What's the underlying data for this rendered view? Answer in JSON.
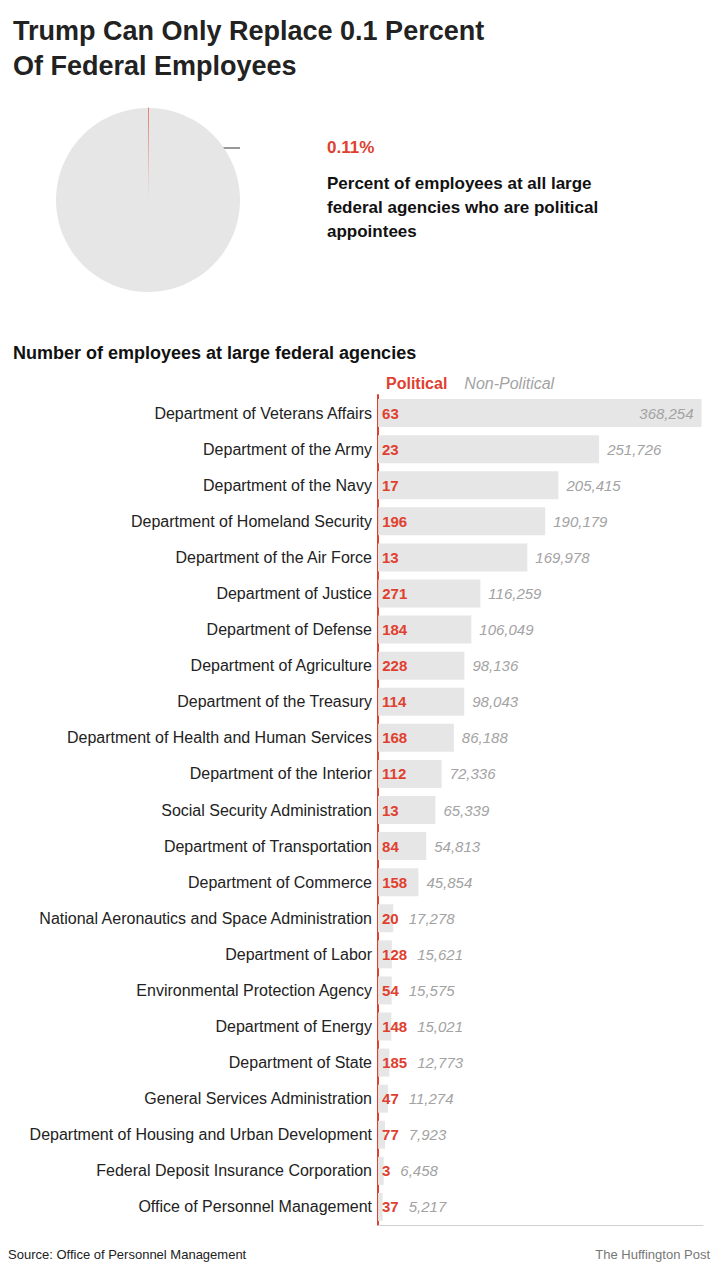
{
  "source": "Source: Office of Personnel Management",
  "credit": "The Huffington Post",
  "chart_data": [
    {
      "type": "pie",
      "title": "Trump Can Only Replace 0.1 Percent Of Federal Employees",
      "values": [
        0.11,
        99.89
      ],
      "colors": [
        "#e0402f",
        "#e6e6e6"
      ],
      "data_labels": true,
      "value_labels": [
        "0.11%",
        null
      ],
      "annotations": [
        "Percent of employees at all large federal agencies who are political appointees"
      ]
    },
    {
      "type": "bar",
      "title": "Number of employees at large federal agencies",
      "orientation": "horizontal",
      "stacked": true,
      "data_labels": true,
      "grid": false,
      "legend": "top-left",
      "tick_labels": "y",
      "xlim": [
        0,
        370000
      ],
      "xticks": [],
      "categories": [
        "Department of Veterans Affairs",
        "Department of the Army",
        "Department of the Navy",
        "Department of Homeland Security",
        "Department of the Air Force",
        "Department of Justice",
        "Department of Defense",
        "Department of Agriculture",
        "Department of the Treasury",
        "Department of Health and Human Services",
        "Department of the Interior",
        "Social Security Administration",
        "Department of Transportation",
        "Department of Commerce",
        "National Aeronautics and Space Administration",
        "Department of Labor",
        "Environmental Protection Agency",
        "Department of Energy",
        "Department of State",
        "General Services Administration",
        "Department of Housing and Urban Development",
        "Federal Deposit Insurance Corporation",
        "Office of Personnel Management"
      ],
      "series": [
        {
          "name": "Political",
          "color": "#e0402f",
          "values": [
            63,
            23,
            17,
            196,
            13,
            271,
            184,
            228,
            114,
            168,
            112,
            13,
            84,
            158,
            20,
            128,
            54,
            148,
            185,
            47,
            77,
            3,
            37
          ]
        },
        {
          "name": "Non-Political",
          "color": "#e6e6e6",
          "values": [
            368254,
            251726,
            205415,
            190179,
            169978,
            116259,
            106049,
            98136,
            98043,
            86188,
            72336,
            65339,
            54813,
            45854,
            17278,
            15621,
            15575,
            15021,
            12773,
            11274,
            7923,
            6458,
            5217
          ],
          "value_labels": [
            "368,254",
            "251,726",
            "205,415",
            "190,179",
            "169,978",
            "116,259",
            "106,049",
            "98,136",
            "98,043",
            "86,188",
            "72,336",
            "65,339",
            "54,813",
            "45,854",
            "17,278",
            "15,621",
            "15,575",
            "15,021",
            "12,773",
            "11,274",
            "7,923",
            "6,458",
            "5,217"
          ]
        }
      ]
    }
  ]
}
